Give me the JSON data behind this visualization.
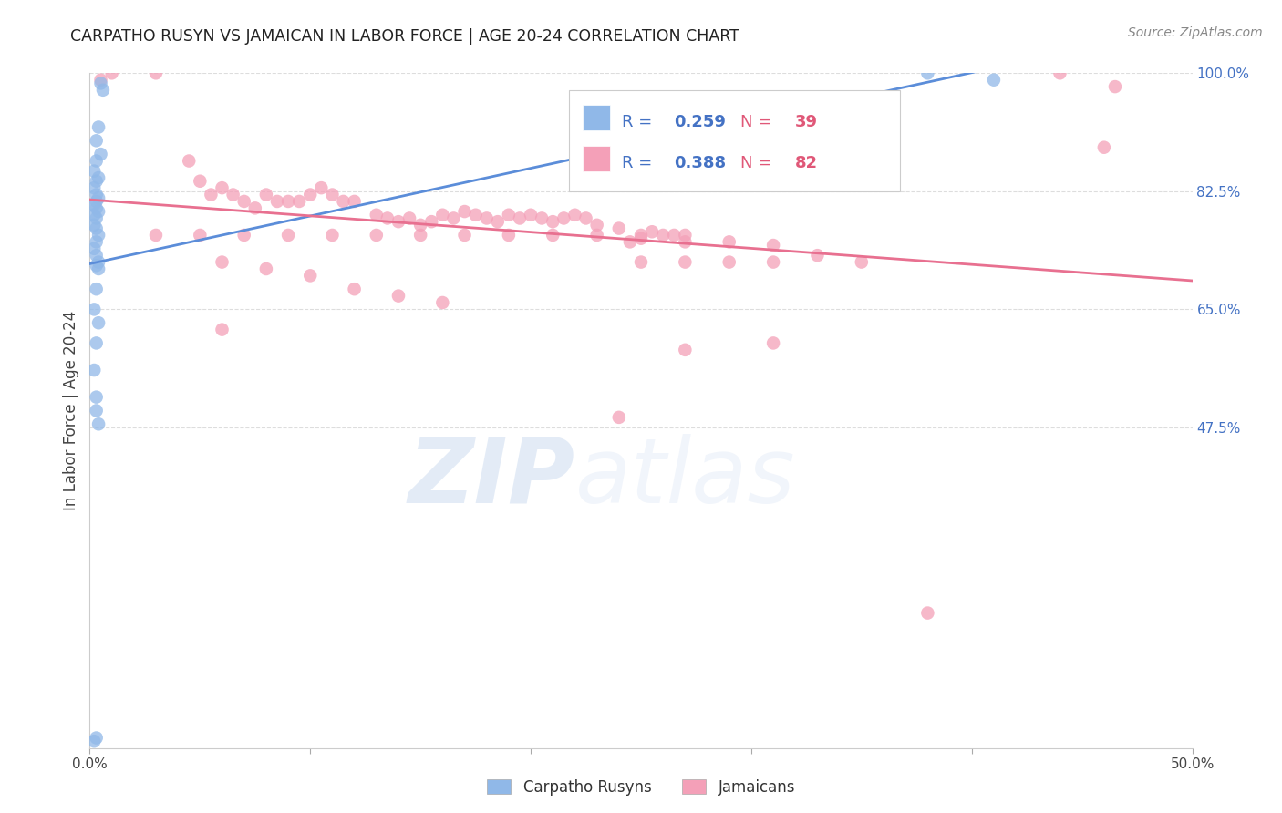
{
  "title": "CARPATHO RUSYN VS JAMAICAN IN LABOR FORCE | AGE 20-24 CORRELATION CHART",
  "source": "Source: ZipAtlas.com",
  "ylabel": "In Labor Force | Age 20-24",
  "x_min": 0.0,
  "x_max": 0.5,
  "y_min": 0.0,
  "y_max": 1.0,
  "blue_line_color": "#5b8dd9",
  "pink_line_color": "#e87090",
  "blue_scatter_color": "#90b8e8",
  "pink_scatter_color": "#f4a0b8",
  "blue_R": 0.259,
  "blue_N": 39,
  "pink_R": 0.388,
  "pink_N": 82,
  "blue_x": [
    0.005,
    0.006,
    0.004,
    0.003,
    0.005,
    0.003,
    0.002,
    0.004,
    0.003,
    0.002,
    0.003,
    0.004,
    0.003,
    0.002,
    0.003,
    0.004,
    0.002,
    0.003,
    0.002,
    0.003,
    0.004,
    0.003,
    0.002,
    0.003,
    0.004,
    0.003,
    0.004,
    0.003,
    0.002,
    0.004,
    0.003,
    0.002,
    0.003,
    0.003,
    0.004,
    0.38,
    0.41,
    0.003,
    0.002
  ],
  "blue_y": [
    0.985,
    0.975,
    0.92,
    0.9,
    0.88,
    0.87,
    0.855,
    0.845,
    0.84,
    0.83,
    0.82,
    0.815,
    0.81,
    0.805,
    0.8,
    0.795,
    0.79,
    0.785,
    0.775,
    0.77,
    0.76,
    0.75,
    0.74,
    0.73,
    0.72,
    0.715,
    0.71,
    0.68,
    0.65,
    0.63,
    0.6,
    0.56,
    0.52,
    0.5,
    0.48,
    1.0,
    0.99,
    0.015,
    0.01
  ],
  "pink_x": [
    0.01,
    0.03,
    0.045,
    0.05,
    0.055,
    0.06,
    0.065,
    0.07,
    0.075,
    0.08,
    0.085,
    0.09,
    0.095,
    0.1,
    0.105,
    0.11,
    0.115,
    0.12,
    0.13,
    0.135,
    0.14,
    0.145,
    0.15,
    0.155,
    0.16,
    0.165,
    0.17,
    0.175,
    0.18,
    0.185,
    0.19,
    0.195,
    0.2,
    0.205,
    0.21,
    0.215,
    0.22,
    0.225,
    0.23,
    0.24,
    0.245,
    0.25,
    0.255,
    0.26,
    0.265,
    0.27,
    0.03,
    0.05,
    0.07,
    0.09,
    0.11,
    0.13,
    0.15,
    0.17,
    0.19,
    0.21,
    0.23,
    0.25,
    0.27,
    0.29,
    0.31,
    0.33,
    0.35,
    0.06,
    0.08,
    0.1,
    0.12,
    0.14,
    0.16,
    0.25,
    0.27,
    0.29,
    0.31,
    0.44,
    0.465,
    0.005,
    0.27,
    0.31,
    0.38,
    0.06,
    0.24,
    0.46
  ],
  "pink_y": [
    1.0,
    1.0,
    0.87,
    0.84,
    0.82,
    0.83,
    0.82,
    0.81,
    0.8,
    0.82,
    0.81,
    0.81,
    0.81,
    0.82,
    0.83,
    0.82,
    0.81,
    0.81,
    0.79,
    0.785,
    0.78,
    0.785,
    0.775,
    0.78,
    0.79,
    0.785,
    0.795,
    0.79,
    0.785,
    0.78,
    0.79,
    0.785,
    0.79,
    0.785,
    0.78,
    0.785,
    0.79,
    0.785,
    0.775,
    0.77,
    0.75,
    0.76,
    0.765,
    0.76,
    0.76,
    0.76,
    0.76,
    0.76,
    0.76,
    0.76,
    0.76,
    0.76,
    0.76,
    0.76,
    0.76,
    0.76,
    0.76,
    0.755,
    0.75,
    0.75,
    0.745,
    0.73,
    0.72,
    0.72,
    0.71,
    0.7,
    0.68,
    0.67,
    0.66,
    0.72,
    0.72,
    0.72,
    0.72,
    1.0,
    0.98,
    0.99,
    0.59,
    0.6,
    0.2,
    0.62,
    0.49,
    0.89
  ],
  "watermark_zip": "ZIP",
  "watermark_atlas": "atlas",
  "background_color": "#ffffff",
  "grid_color": "#dddddd",
  "legend_box_color": "#f0f0f0",
  "right_tick_color": "#4472c4"
}
